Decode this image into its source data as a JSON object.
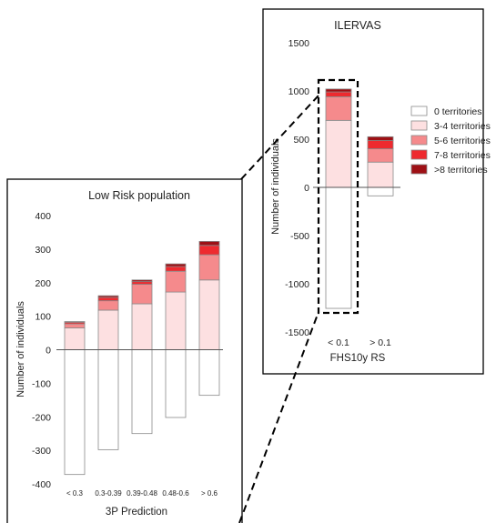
{
  "colors": {
    "segments": [
      "#ffffff",
      "#fde0e1",
      "#f58a8c",
      "#ee2a2f",
      "#9e1015"
    ],
    "segment_stroke": "#8a8a8a",
    "axis": "#555555",
    "frame": "#000000"
  },
  "chart_data": [
    {
      "type": "bar",
      "stacked": true,
      "title": "ILERVAS",
      "xlabel": "FHS10y RS",
      "ylabel": "Number of individuals",
      "ylim": [
        -1500,
        1500
      ],
      "yticks": [
        1500,
        1000,
        500,
        0,
        -500,
        -1000,
        -1500
      ],
      "categories": [
        "< 0.1",
        "> 0.1"
      ],
      "series": [
        {
          "name": "0 territories",
          "values": [
            -1255,
            -88
          ]
        },
        {
          "name": "3-4 territories",
          "values": [
            695,
            262
          ]
        },
        {
          "name": "5-6 territories",
          "values": [
            245,
            138
          ]
        },
        {
          "name": "7-8 territories",
          "values": [
            50,
            85
          ]
        },
        {
          "name": ">8 territories",
          "values": [
            30,
            40
          ]
        }
      ],
      "legend": "right",
      "highlight_category": "< 0.1"
    },
    {
      "type": "bar",
      "stacked": true,
      "title": "Low Risk population",
      "xlabel": "3P Prediction",
      "ylabel": "Number of individuals",
      "ylim": [
        -400,
        400
      ],
      "yticks": [
        400,
        300,
        200,
        100,
        0,
        -100,
        -200,
        -300,
        -400
      ],
      "categories": [
        "< 0.3",
        "0.3-0.39",
        "0.39-0.48",
        "0.48-0.6",
        "> 0.6"
      ],
      "series": [
        {
          "name": "0 territories",
          "values": [
            -372,
            -298,
            -250,
            -202,
            -136
          ]
        },
        {
          "name": "3-4 territories",
          "values": [
            65,
            118,
            137,
            172,
            208
          ]
        },
        {
          "name": "5-6 territories",
          "values": [
            12,
            28,
            58,
            62,
            75
          ]
        },
        {
          "name": "7-8 territories",
          "values": [
            5,
            10,
            8,
            14,
            28
          ]
        },
        {
          "name": ">8 territories",
          "values": [
            2,
            5,
            5,
            8,
            12
          ]
        }
      ]
    }
  ]
}
